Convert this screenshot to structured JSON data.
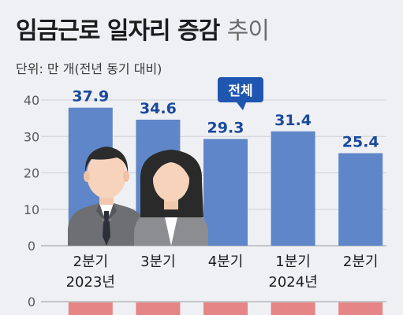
{
  "title_main": "임금근로 일자리 증감",
  "title_sub": "추이",
  "unit_label": "단위: 만 개(전년 동기 대비)",
  "callout": "전체",
  "colors": {
    "bar": "#5f86c8",
    "bar_bottom": "#e58585",
    "label": "#1a4a9c",
    "callout": "#1f56b0"
  },
  "chart_data": {
    "type": "bar",
    "categories": [
      "2분기",
      "3분기",
      "4분기",
      "1분기",
      "2분기"
    ],
    "year_labels": [
      "2023년",
      "",
      "",
      "2024년",
      ""
    ],
    "series": [
      {
        "name": "전체",
        "values": [
          37.9,
          34.6,
          29.3,
          31.4,
          25.4
        ]
      }
    ],
    "yticks": [
      0,
      10,
      20,
      30,
      40
    ],
    "ylim": [
      0,
      42
    ],
    "lower_axis_tick": "0",
    "grid": true
  }
}
